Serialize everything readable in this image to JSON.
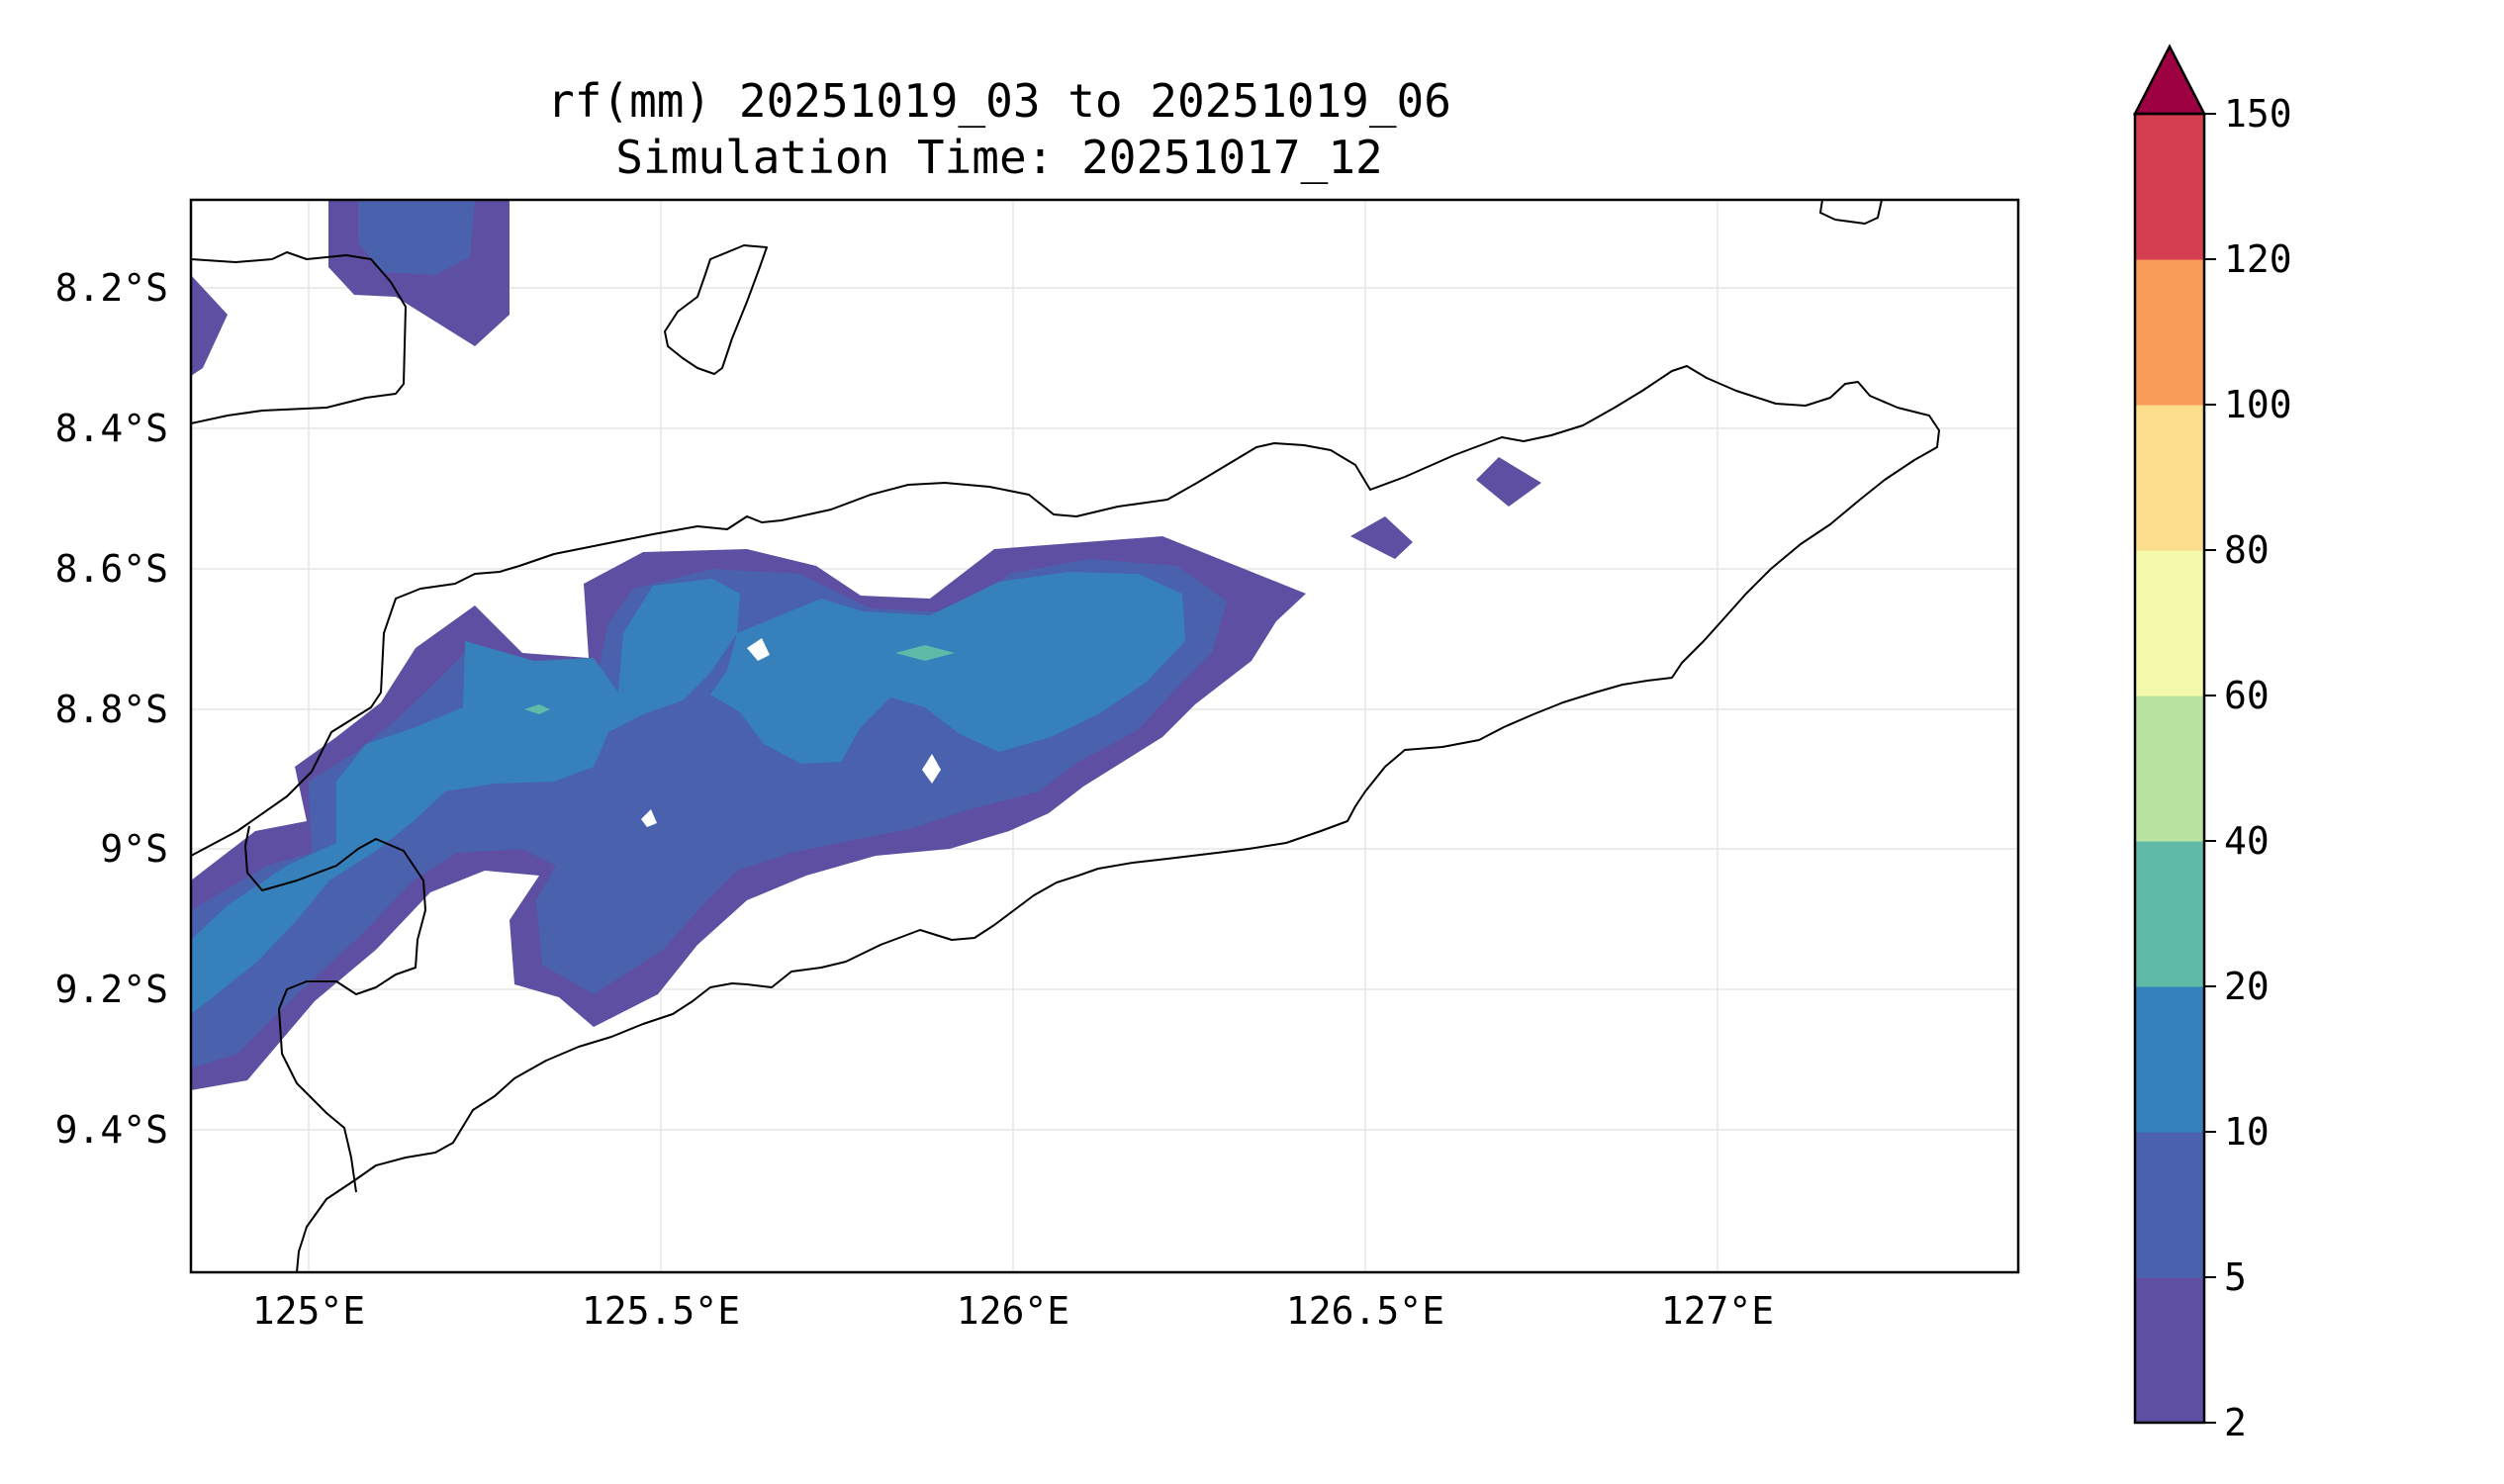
{
  "title": {
    "line1": "rf(mm) 20251019_03 to 20251019_06",
    "line2": "Simulation Time: 20251017_12"
  },
  "map": {
    "x_ticks": [
      "125°E",
      "125.5°E",
      "126°E",
      "126.5°E",
      "127°E"
    ],
    "y_ticks": [
      "8.2°S",
      "8.4°S",
      "8.6°S",
      "8.8°S",
      "9°S",
      "9.2°S",
      "9.4°S"
    ],
    "lon_range": [
      124.8,
      127.4
    ],
    "lat_range": [
      -9.6,
      -8.07
    ],
    "grid": true
  },
  "colorbar": {
    "levels": [
      "2",
      "5",
      "10",
      "20",
      "40",
      "60",
      "80",
      "100",
      "120",
      "150"
    ],
    "colors": [
      "#5e4fa2",
      "#4a62ae",
      "#3680bb",
      "#5fbaa8",
      "#b9e3a0",
      "#f4f9ab",
      "#fbdd8c",
      "#f99c5a",
      "#d53e4f",
      "#9e0142"
    ],
    "extend": "max"
  }
}
